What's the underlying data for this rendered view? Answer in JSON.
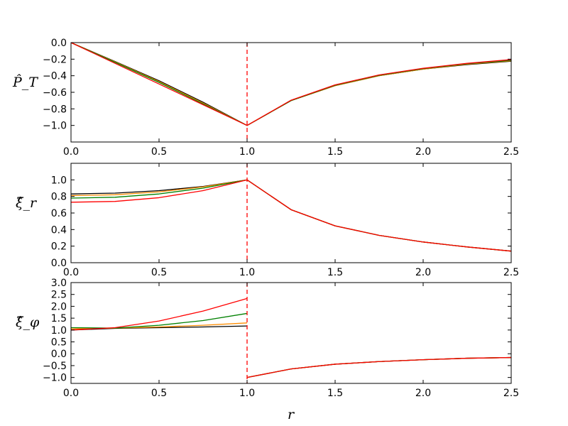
{
  "chart_data": [
    {
      "type": "line",
      "panel": "top",
      "ylabel": "P̂_T",
      "xlim": [
        0.0,
        2.5
      ],
      "ylim": [
        -1.2,
        0.0
      ],
      "xticks": [
        "0.0",
        "0.5",
        "1.0",
        "1.5",
        "2.0",
        "2.5"
      ],
      "yticks": [
        "0.0",
        "−0.2",
        "−0.4",
        "−0.6",
        "−0.8",
        "−1.0"
      ],
      "ytick_values": [
        0.0,
        -0.2,
        -0.4,
        -0.6,
        -0.8,
        -1.0
      ],
      "vline": {
        "x": 1.0,
        "style": "dashed",
        "color": "#ff0000"
      },
      "series": [
        {
          "color": "#000000",
          "x": [
            0,
            0.25,
            0.5,
            0.75,
            1.0,
            1.25,
            1.5,
            1.75,
            2.0,
            2.25,
            2.5
          ],
          "y": [
            0,
            -0.228,
            -0.46,
            -0.72,
            -1.0,
            -0.7,
            -0.52,
            -0.4,
            -0.32,
            -0.265,
            -0.225
          ]
        },
        {
          "color": "#ff8c00",
          "x": [
            0,
            0.25,
            0.5,
            0.75,
            1.0,
            1.25,
            1.5,
            1.75,
            2.0,
            2.25,
            2.5
          ],
          "y": [
            0,
            -0.232,
            -0.47,
            -0.73,
            -1.0,
            -0.7,
            -0.52,
            -0.4,
            -0.32,
            -0.26,
            -0.22
          ]
        },
        {
          "color": "#008000",
          "x": [
            0,
            0.25,
            0.5,
            0.75,
            1.0,
            1.25,
            1.5,
            1.75,
            2.0,
            2.25,
            2.5
          ],
          "y": [
            0,
            -0.238,
            -0.48,
            -0.74,
            -1.0,
            -0.7,
            -0.515,
            -0.395,
            -0.315,
            -0.255,
            -0.215
          ]
        },
        {
          "color": "#ff0000",
          "x": [
            0,
            0.25,
            0.5,
            0.75,
            1.0,
            1.25,
            1.5,
            1.75,
            2.0,
            2.25,
            2.5
          ],
          "y": [
            0,
            -0.25,
            -0.5,
            -0.75,
            -1.0,
            -0.695,
            -0.51,
            -0.39,
            -0.31,
            -0.25,
            -0.205
          ]
        }
      ]
    },
    {
      "type": "line",
      "panel": "middle",
      "ylabel": "ξ̂_r",
      "xlim": [
        0.0,
        2.5
      ],
      "ylim": [
        0.0,
        1.2
      ],
      "xticks": [
        "0.0",
        "0.5",
        "1.0",
        "1.5",
        "2.0",
        "2.5"
      ],
      "yticks": [
        "0.0",
        "0.2",
        "0.4",
        "0.6",
        "0.8",
        "1.0"
      ],
      "ytick_values": [
        0.0,
        0.2,
        0.4,
        0.6,
        0.8,
        1.0
      ],
      "vline": {
        "x": 1.0,
        "style": "dashed",
        "color": "#ff0000"
      },
      "series": [
        {
          "color": "#000000",
          "x": [
            0,
            0.25,
            0.5,
            0.75,
            1.0,
            1.25,
            1.5,
            1.75,
            2.0,
            2.25,
            2.5
          ],
          "y": [
            0.83,
            0.84,
            0.87,
            0.92,
            1.0,
            0.64,
            0.445,
            0.33,
            0.25,
            0.19,
            0.14
          ]
        },
        {
          "color": "#ff8c00",
          "x": [
            0,
            0.25,
            0.5,
            0.75,
            1.0,
            1.25,
            1.5,
            1.75,
            2.0,
            2.25,
            2.5
          ],
          "y": [
            0.81,
            0.82,
            0.855,
            0.915,
            1.0,
            0.64,
            0.445,
            0.33,
            0.25,
            0.19,
            0.14
          ]
        },
        {
          "color": "#008000",
          "x": [
            0,
            0.25,
            0.5,
            0.75,
            1.0,
            1.25,
            1.5,
            1.75,
            2.0,
            2.25,
            2.5
          ],
          "y": [
            0.78,
            0.79,
            0.83,
            0.9,
            1.0,
            0.64,
            0.445,
            0.33,
            0.25,
            0.19,
            0.14
          ]
        },
        {
          "color": "#ff0000",
          "x": [
            0,
            0.25,
            0.5,
            0.75,
            1.0,
            1.25,
            1.5,
            1.75,
            2.0,
            2.25,
            2.5
          ],
          "y": [
            0.73,
            0.74,
            0.785,
            0.87,
            1.0,
            0.64,
            0.445,
            0.33,
            0.25,
            0.19,
            0.14
          ]
        }
      ]
    },
    {
      "type": "line",
      "panel": "bottom",
      "ylabel": "ξ̂_φ",
      "xlabel": "r",
      "xlim": [
        0.0,
        2.5
      ],
      "ylim": [
        -1.25,
        3.0
      ],
      "xticks": [
        "0.0",
        "0.5",
        "1.0",
        "1.5",
        "2.0",
        "2.5"
      ],
      "yticks": [
        "3.0",
        "2.5",
        "2.0",
        "1.5",
        "1.0",
        "0.5",
        "0.0",
        "−0.5",
        "−1.0"
      ],
      "ytick_values": [
        3.0,
        2.5,
        2.0,
        1.5,
        1.0,
        0.5,
        0.0,
        -0.5,
        -1.0
      ],
      "vline": {
        "x": 1.0,
        "style": "dashed",
        "color": "#ff0000"
      },
      "series": [
        {
          "color": "#000000",
          "x": [
            0,
            0.25,
            0.5,
            0.75,
            1.0,
            1.0,
            1.25,
            1.5,
            1.75,
            2.0,
            2.25,
            2.5
          ],
          "y": [
            1.0,
            1.07,
            1.1,
            1.13,
            1.17,
            -1.0,
            -0.64,
            -0.44,
            -0.33,
            -0.25,
            -0.19,
            -0.16
          ]
        },
        {
          "color": "#ff8c00",
          "x": [
            0,
            0.25,
            0.5,
            0.75,
            1.0,
            1.0,
            1.25,
            1.5,
            1.75,
            2.0,
            2.25,
            2.5
          ],
          "y": [
            1.05,
            1.08,
            1.13,
            1.2,
            1.3,
            -1.0,
            -0.64,
            -0.44,
            -0.33,
            -0.25,
            -0.19,
            -0.16
          ]
        },
        {
          "color": "#008000",
          "x": [
            0,
            0.25,
            0.5,
            0.75,
            1.0,
            1.0,
            1.25,
            1.5,
            1.75,
            2.0,
            2.25,
            2.5
          ],
          "y": [
            1.1,
            1.08,
            1.2,
            1.4,
            1.7,
            -1.0,
            -0.64,
            -0.44,
            -0.33,
            -0.25,
            -0.19,
            -0.16
          ]
        },
        {
          "color": "#ff0000",
          "x": [
            0,
            0.25,
            0.5,
            0.75,
            1.0,
            1.0,
            1.25,
            1.5,
            1.75,
            2.0,
            2.25,
            2.5
          ],
          "y": [
            1.0,
            1.1,
            1.38,
            1.8,
            2.33,
            -1.0,
            -0.64,
            -0.44,
            -0.33,
            -0.25,
            -0.19,
            -0.16
          ]
        }
      ]
    }
  ]
}
